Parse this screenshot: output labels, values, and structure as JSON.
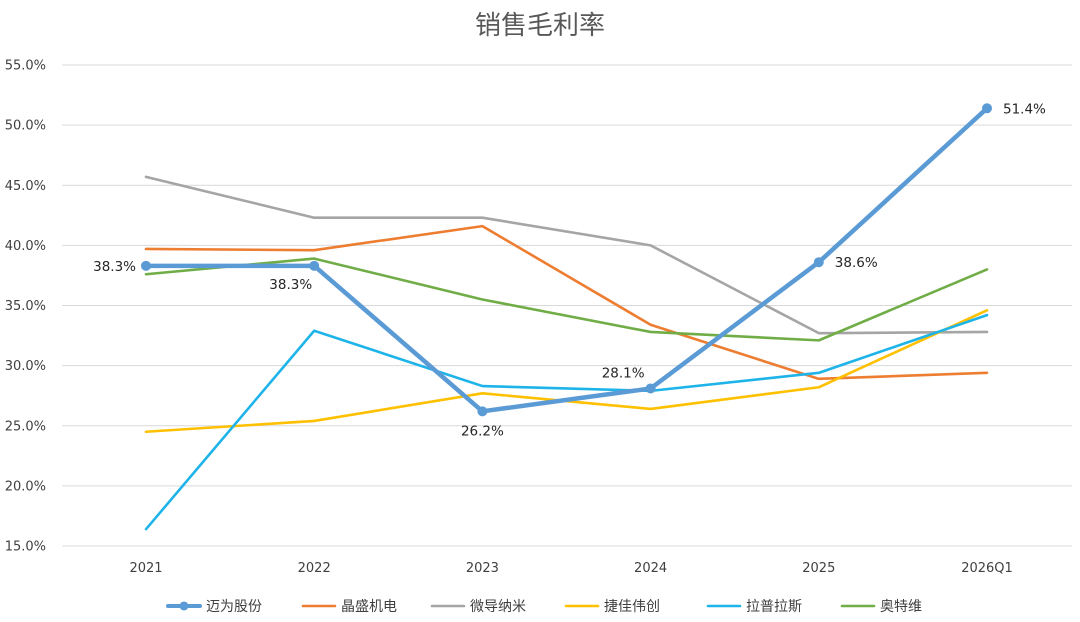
{
  "chart_data": {
    "type": "line",
    "title": "销售毛利率",
    "xlabel": "",
    "ylabel": "",
    "categories": [
      "2021",
      "2022",
      "2023",
      "2024",
      "2025",
      "2026Q1"
    ],
    "ylim": [
      0.15,
      0.55
    ],
    "yticks": [
      "15.0%",
      "20.0%",
      "25.0%",
      "30.0%",
      "35.0%",
      "40.0%",
      "45.0%",
      "50.0%",
      "55.0%"
    ],
    "ytick_values": [
      0.15,
      0.2,
      0.25,
      0.3,
      0.35,
      0.4,
      0.45,
      0.5,
      0.55
    ],
    "grid": true,
    "legend_position": "bottom",
    "series": [
      {
        "name": "迈为股份",
        "color": "#5b9bd5",
        "values": [
          0.383,
          0.383,
          0.262,
          0.281,
          0.386,
          0.514
        ],
        "markers": true,
        "highlight": true,
        "data_labels": [
          "38.3%",
          "38.3%",
          "26.2%",
          "28.1%",
          "38.6%",
          "51.4%"
        ]
      },
      {
        "name": "晶盛机电",
        "color": "#ed7d31",
        "values": [
          0.397,
          0.396,
          0.416,
          0.334,
          0.289,
          0.294
        ]
      },
      {
        "name": "微导纳米",
        "color": "#a5a5a5",
        "values": [
          0.457,
          0.423,
          0.423,
          0.4,
          0.327,
          0.328
        ]
      },
      {
        "name": "捷佳伟创",
        "color": "#ffc000",
        "values": [
          0.245,
          0.254,
          0.277,
          0.264,
          0.282,
          0.346
        ]
      },
      {
        "name": "拉普拉斯",
        "color": "#1fb4e9",
        "values": [
          0.164,
          0.329,
          0.283,
          0.279,
          0.294,
          0.342
        ]
      },
      {
        "name": "奥特维",
        "color": "#70ad47",
        "values": [
          0.376,
          0.389,
          0.355,
          0.328,
          0.321,
          0.38
        ]
      }
    ]
  }
}
